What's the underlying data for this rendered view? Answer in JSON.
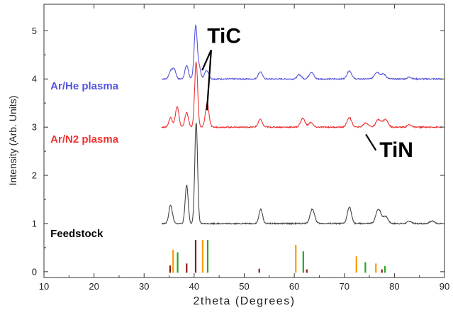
{
  "chart_data": {
    "type": "line",
    "xlabel": "2theta (Degrees)",
    "ylabel": "Intensity (Arb. Units)",
    "xlim": [
      10,
      90
    ],
    "ylim": [
      -0.12,
      5.55
    ],
    "x_ticks": [
      10,
      20,
      30,
      40,
      50,
      60,
      70,
      80,
      90
    ],
    "y_ticks": [
      0,
      1,
      2,
      3,
      4,
      5
    ],
    "grid": false,
    "series": [
      {
        "name": "Ar/He plasma",
        "color": "#5555dd",
        "baseline": 4.0,
        "peaks": [
          [
            35.3,
            0.15,
            0.35
          ],
          [
            36.0,
            0.2,
            0.35
          ],
          [
            38.5,
            0.28,
            0.35
          ],
          [
            40.3,
            1.1,
            0.3
          ],
          [
            41.0,
            0.25,
            0.3
          ],
          [
            42.5,
            0.18,
            0.4
          ],
          [
            53.2,
            0.15,
            0.4
          ],
          [
            61.0,
            0.09,
            0.4
          ],
          [
            63.4,
            0.14,
            0.45
          ],
          [
            71.0,
            0.17,
            0.45
          ],
          [
            76.5,
            0.14,
            0.5
          ],
          [
            77.8,
            0.1,
            0.5
          ],
          [
            83.0,
            0.04,
            0.4
          ]
        ]
      },
      {
        "name": "Ar/N2 plasma",
        "color": "#ee3333",
        "baseline": 3.0,
        "peaks": [
          [
            35.3,
            0.2,
            0.35
          ],
          [
            36.6,
            0.42,
            0.35
          ],
          [
            38.5,
            0.3,
            0.35
          ],
          [
            40.4,
            1.35,
            0.3
          ],
          [
            42.6,
            0.5,
            0.35
          ],
          [
            53.2,
            0.16,
            0.4
          ],
          [
            61.7,
            0.18,
            0.45
          ],
          [
            63.3,
            0.1,
            0.4
          ],
          [
            71.0,
            0.2,
            0.45
          ],
          [
            74.3,
            0.09,
            0.5
          ],
          [
            76.8,
            0.16,
            0.5
          ],
          [
            78.2,
            0.16,
            0.5
          ],
          [
            83.0,
            0.05,
            0.4
          ]
        ]
      },
      {
        "name": "Feedstock",
        "color": "#444444",
        "baseline": 1.0,
        "peaks": [
          [
            35.3,
            0.38,
            0.35
          ],
          [
            38.5,
            0.8,
            0.3
          ],
          [
            40.4,
            2.1,
            0.28
          ],
          [
            53.3,
            0.3,
            0.35
          ],
          [
            63.6,
            0.3,
            0.45
          ],
          [
            71.0,
            0.35,
            0.4
          ],
          [
            76.8,
            0.3,
            0.5
          ],
          [
            78.2,
            0.15,
            0.5
          ],
          [
            83.0,
            0.05,
            0.4
          ],
          [
            87.5,
            0.05,
            0.5
          ]
        ]
      }
    ],
    "reference_lines": [
      {
        "color": "#8b1a1a",
        "lines": [
          [
            35.2,
            0.22
          ],
          [
            38.5,
            0.28
          ],
          [
            40.3,
            1.0
          ],
          [
            53.0,
            0.12
          ],
          [
            62.5,
            0.1
          ],
          [
            77.5,
            0.1
          ]
        ]
      },
      {
        "color": "#ff9900",
        "lines": [
          [
            35.8,
            0.7
          ],
          [
            41.7,
            1.0
          ],
          [
            60.3,
            0.85
          ],
          [
            72.4,
            0.5
          ],
          [
            76.3,
            0.28
          ]
        ]
      },
      {
        "color": "#22aa22",
        "lines": [
          [
            36.7,
            0.62
          ],
          [
            42.7,
            1.0
          ],
          [
            61.8,
            0.65
          ],
          [
            74.2,
            0.32
          ],
          [
            78.1,
            0.2
          ]
        ]
      }
    ],
    "annotations": [
      {
        "text": "TiC",
        "x": 42.6,
        "y": 4.75,
        "color": "#000000"
      },
      {
        "text": "TiN",
        "x": 77.0,
        "y": 2.38,
        "color": "#000000"
      },
      {
        "text": "Ar/He plasma",
        "x": 11.3,
        "y": 3.78,
        "color": "#5555dd"
      },
      {
        "text": "Ar/N2 plasma",
        "x": 11.3,
        "y": 2.68,
        "color": "#ee3333"
      },
      {
        "text": "Feedstock",
        "x": 11.3,
        "y": 0.72,
        "color": "#000000"
      }
    ],
    "leader_lines": [
      {
        "from": [
          43.4,
          4.6
        ],
        "to": [
          41.6,
          4.18
        ]
      },
      {
        "from": [
          43.4,
          4.6
        ],
        "to": [
          42.55,
          3.35
        ]
      },
      {
        "from": [
          74.3,
          2.85
        ],
        "to": [
          76.3,
          2.52
        ]
      }
    ]
  }
}
